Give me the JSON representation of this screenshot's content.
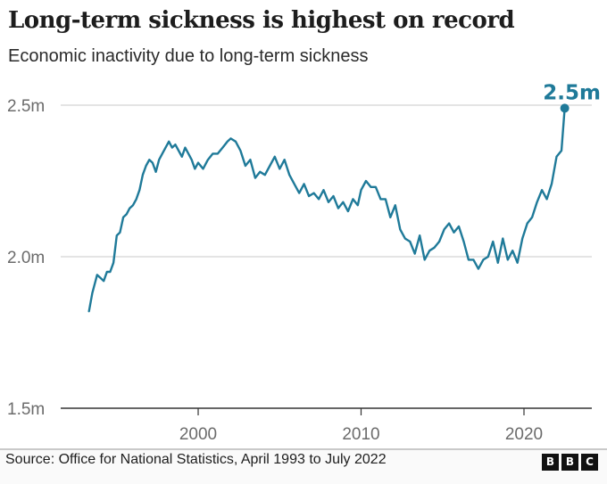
{
  "header": {
    "title": "Long-term sickness is highest on record",
    "subtitle": "Economic inactivity due to long-term sickness"
  },
  "footer": {
    "source": "Source: Office for National Statistics, April 1993 to July 2022",
    "logo_letters": [
      "B",
      "B",
      "C"
    ]
  },
  "colors": {
    "line": "#1f7a99",
    "grid": "#dcdcdc",
    "axis": "#333333",
    "tick_text": "#6b6b6b"
  },
  "chart_data": {
    "type": "line",
    "title": "Long-term sickness is highest on record",
    "subtitle": "Economic inactivity due to long-term sickness",
    "xlabel": "",
    "ylabel": "",
    "xlim": [
      1992.3,
      2024.0
    ],
    "ylim": [
      1.5,
      2.5
    ],
    "y_ticks": [
      {
        "value": 1.5,
        "label": "1.5m"
      },
      {
        "value": 2.0,
        "label": "2.0m"
      },
      {
        "value": 2.5,
        "label": "2.5m"
      }
    ],
    "x_ticks": [
      {
        "value": 2000,
        "label": "2000"
      },
      {
        "value": 2010,
        "label": "2010"
      },
      {
        "value": 2020,
        "label": "2020"
      }
    ],
    "grid": true,
    "legend": "none",
    "annotation": {
      "label": "2.5m",
      "x": 2022.5,
      "y": 2.49
    },
    "series": [
      {
        "name": "Economic inactivity due to long-term sickness (millions)",
        "x": [
          1993.3,
          1993.5,
          1993.6,
          1993.8,
          1994.0,
          1994.2,
          1994.4,
          1994.6,
          1994.8,
          1995.0,
          1995.2,
          1995.4,
          1995.6,
          1995.8,
          1996.0,
          1996.2,
          1996.4,
          1996.6,
          1996.8,
          1997.0,
          1997.2,
          1997.4,
          1997.6,
          1997.8,
          1998.0,
          1998.2,
          1998.4,
          1998.6,
          1998.8,
          1999.0,
          1999.2,
          1999.4,
          1999.6,
          1999.8,
          2000.0,
          2000.3,
          2000.6,
          2000.9,
          2001.2,
          2001.5,
          2001.8,
          2002.0,
          2002.3,
          2002.6,
          2002.9,
          2003.2,
          2003.5,
          2003.8,
          2004.1,
          2004.4,
          2004.7,
          2005.0,
          2005.3,
          2005.6,
          2005.9,
          2006.2,
          2006.5,
          2006.8,
          2007.1,
          2007.4,
          2007.7,
          2008.0,
          2008.3,
          2008.6,
          2008.9,
          2009.2,
          2009.5,
          2009.8,
          2010.0,
          2010.3,
          2010.6,
          2010.9,
          2011.2,
          2011.5,
          2011.8,
          2012.1,
          2012.4,
          2012.7,
          2013.0,
          2013.3,
          2013.6,
          2013.9,
          2014.2,
          2014.5,
          2014.8,
          2015.1,
          2015.4,
          2015.7,
          2016.0,
          2016.3,
          2016.6,
          2016.9,
          2017.2,
          2017.5,
          2017.8,
          2018.1,
          2018.4,
          2018.7,
          2019.0,
          2019.3,
          2019.6,
          2019.9,
          2020.2,
          2020.5,
          2020.8,
          2021.1,
          2021.4,
          2021.7,
          2022.0,
          2022.3,
          2022.5
        ],
        "values": [
          1.82,
          1.88,
          1.9,
          1.94,
          1.93,
          1.92,
          1.95,
          1.95,
          1.98,
          2.07,
          2.08,
          2.13,
          2.14,
          2.16,
          2.17,
          2.19,
          2.22,
          2.27,
          2.3,
          2.32,
          2.31,
          2.28,
          2.32,
          2.34,
          2.36,
          2.38,
          2.36,
          2.37,
          2.35,
          2.33,
          2.36,
          2.34,
          2.32,
          2.29,
          2.31,
          2.29,
          2.32,
          2.34,
          2.34,
          2.36,
          2.38,
          2.39,
          2.38,
          2.35,
          2.3,
          2.32,
          2.26,
          2.28,
          2.27,
          2.3,
          2.33,
          2.29,
          2.32,
          2.27,
          2.24,
          2.21,
          2.24,
          2.2,
          2.21,
          2.19,
          2.22,
          2.18,
          2.2,
          2.16,
          2.18,
          2.15,
          2.19,
          2.17,
          2.22,
          2.25,
          2.23,
          2.23,
          2.19,
          2.19,
          2.13,
          2.17,
          2.09,
          2.06,
          2.05,
          2.01,
          2.07,
          1.99,
          2.02,
          2.03,
          2.05,
          2.09,
          2.11,
          2.08,
          2.1,
          2.05,
          1.99,
          1.99,
          1.96,
          1.99,
          2.0,
          2.05,
          1.98,
          2.06,
          1.99,
          2.02,
          1.98,
          2.06,
          2.11,
          2.13,
          2.18,
          2.22,
          2.19,
          2.24,
          2.33,
          2.35,
          2.49
        ]
      }
    ]
  }
}
